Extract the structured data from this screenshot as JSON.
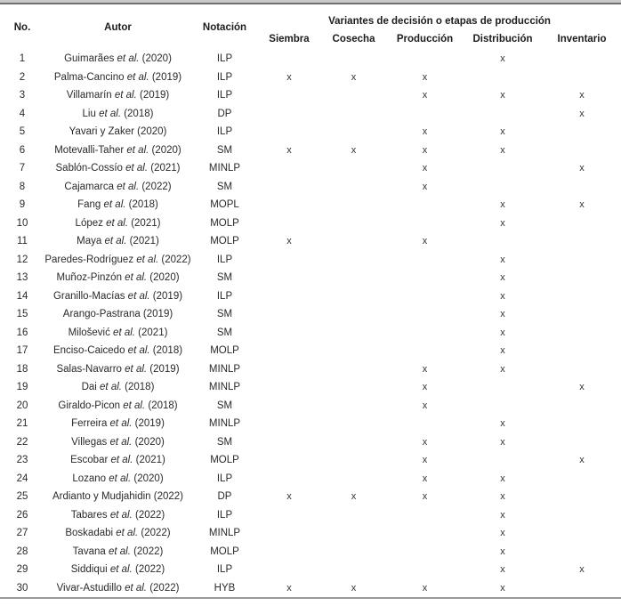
{
  "table": {
    "headers": {
      "no": "No.",
      "autor": "Autor",
      "notacion": "Notación",
      "group": "Variantes de decisión o etapas de producción",
      "variants": [
        "Siembra",
        "Cosecha",
        "Producción",
        "Distribución",
        "Inventario"
      ]
    },
    "variant_keys": [
      "siembra",
      "cosecha",
      "produccion",
      "distribucion",
      "inventario"
    ],
    "mark_symbol": "x",
    "rows": [
      {
        "no": "1",
        "author_pre": "Guimarães ",
        "author_etal": "et al.",
        "author_post": " (2020)",
        "notation": "ILP",
        "marks": [
          "",
          "",
          "",
          "x",
          ""
        ]
      },
      {
        "no": "2",
        "author_pre": "Palma-Cancino ",
        "author_etal": "et al.",
        "author_post": " (2019)",
        "notation": "ILP",
        "marks": [
          "x",
          "x",
          "x",
          "",
          ""
        ]
      },
      {
        "no": "3",
        "author_pre": "Villamarín ",
        "author_etal": "et al.",
        "author_post": " (2019)",
        "notation": "ILP",
        "marks": [
          "",
          "",
          "x",
          "x",
          "x"
        ]
      },
      {
        "no": "4",
        "author_pre": "Liu ",
        "author_etal": "et al.",
        "author_post": " (2018)",
        "notation": "DP",
        "marks": [
          "",
          "",
          "",
          "",
          "x"
        ]
      },
      {
        "no": "5",
        "author_pre": "Yavari y Zaker (2020)",
        "author_etal": "",
        "author_post": "",
        "notation": "ILP",
        "marks": [
          "",
          "",
          "x",
          "x",
          ""
        ]
      },
      {
        "no": "6",
        "author_pre": "Motevalli-Taher ",
        "author_etal": "et al.",
        "author_post": " (2020)",
        "notation": "SM",
        "marks": [
          "x",
          "x",
          "x",
          "x",
          ""
        ]
      },
      {
        "no": "7",
        "author_pre": "Sablón-Cossío ",
        "author_etal": "et al.",
        "author_post": " (2021)",
        "notation": "MINLP",
        "marks": [
          "",
          "",
          "x",
          "",
          "x"
        ]
      },
      {
        "no": "8",
        "author_pre": "Cajamarca ",
        "author_etal": "et al.",
        "author_post": " (2022)",
        "notation": "SM",
        "marks": [
          "",
          "",
          "x",
          "",
          ""
        ]
      },
      {
        "no": "9",
        "author_pre": "Fang ",
        "author_etal": "et al.",
        "author_post": " (2018)",
        "notation": "MOPL",
        "marks": [
          "",
          "",
          "",
          "x",
          "x"
        ]
      },
      {
        "no": "10",
        "author_pre": "López ",
        "author_etal": "et al.",
        "author_post": " (2021)",
        "notation": "MOLP",
        "marks": [
          "",
          "",
          "",
          "x",
          ""
        ]
      },
      {
        "no": "11",
        "author_pre": "Maya ",
        "author_etal": "et al.",
        "author_post": " (2021)",
        "notation": "MOLP",
        "marks": [
          "x",
          "",
          "x",
          "",
          ""
        ]
      },
      {
        "no": "12",
        "author_pre": "Paredes-Rodríguez ",
        "author_etal": "et al.",
        "author_post": " (2022)",
        "notation": "ILP",
        "marks": [
          "",
          "",
          "",
          "x",
          ""
        ]
      },
      {
        "no": "13",
        "author_pre": "Muñoz-Pinzón ",
        "author_etal": "et al.",
        "author_post": " (2020)",
        "notation": "SM",
        "marks": [
          "",
          "",
          "",
          "x",
          ""
        ]
      },
      {
        "no": "14",
        "author_pre": "Granillo-Macías ",
        "author_etal": "et al.",
        "author_post": " (2019)",
        "notation": "ILP",
        "marks": [
          "",
          "",
          "",
          "x",
          ""
        ]
      },
      {
        "no": "15",
        "author_pre": "Arango-Pastrana (2019)",
        "author_etal": "",
        "author_post": "",
        "notation": "SM",
        "marks": [
          "",
          "",
          "",
          "x",
          ""
        ]
      },
      {
        "no": "16",
        "author_pre": "Milošević ",
        "author_etal": "et al.",
        "author_post": " (2021)",
        "notation": "SM",
        "marks": [
          "",
          "",
          "",
          "x",
          ""
        ]
      },
      {
        "no": "17",
        "author_pre": "Enciso-Caicedo ",
        "author_etal": "et al.",
        "author_post": " (2018)",
        "notation": "MOLP",
        "marks": [
          "",
          "",
          "",
          "x",
          ""
        ]
      },
      {
        "no": "18",
        "author_pre": "Salas-Navarro ",
        "author_etal": "et al.",
        "author_post": " (2019)",
        "notation": "MINLP",
        "marks": [
          "",
          "",
          "x",
          "x",
          ""
        ]
      },
      {
        "no": "19",
        "author_pre": "Dai ",
        "author_etal": "et al.",
        "author_post": " (2018)",
        "notation": "MINLP",
        "marks": [
          "",
          "",
          "x",
          "",
          "x"
        ]
      },
      {
        "no": "20",
        "author_pre": "Giraldo-Picon ",
        "author_etal": "et al.",
        "author_post": " (2018)",
        "notation": "SM",
        "marks": [
          "",
          "",
          "x",
          "",
          ""
        ]
      },
      {
        "no": "21",
        "author_pre": "Ferreira ",
        "author_etal": "et al.",
        "author_post": " (2019)",
        "notation": "MINLP",
        "marks": [
          "",
          "",
          "",
          "x",
          ""
        ]
      },
      {
        "no": "22",
        "author_pre": "Villegas ",
        "author_etal": "et al.",
        "author_post": " (2020)",
        "notation": "SM",
        "marks": [
          "",
          "",
          "x",
          "x",
          ""
        ]
      },
      {
        "no": "23",
        "author_pre": "Escobar ",
        "author_etal": "et al.",
        "author_post": " (2021)",
        "notation": "MOLP",
        "marks": [
          "",
          "",
          "x",
          "",
          "x"
        ]
      },
      {
        "no": "24",
        "author_pre": "Lozano ",
        "author_etal": "et al.",
        "author_post": " (2020)",
        "notation": "ILP",
        "marks": [
          "",
          "",
          "x",
          "x",
          ""
        ]
      },
      {
        "no": "25",
        "author_pre": "Ardianto y Mudjahidin (2022)",
        "author_etal": "",
        "author_post": "",
        "notation": "DP",
        "marks": [
          "x",
          "x",
          "x",
          "x",
          ""
        ]
      },
      {
        "no": "26",
        "author_pre": "Tabares ",
        "author_etal": "et al.",
        "author_post": " (2022)",
        "notation": "ILP",
        "marks": [
          "",
          "",
          "",
          "x",
          ""
        ]
      },
      {
        "no": "27",
        "author_pre": "Boskadabi ",
        "author_etal": "et al.",
        "author_post": " (2022)",
        "notation": "MINLP",
        "marks": [
          "",
          "",
          "",
          "x",
          ""
        ]
      },
      {
        "no": "28",
        "author_pre": "Tavana ",
        "author_etal": "et al.",
        "author_post": " (2022)",
        "notation": "MOLP",
        "marks": [
          "",
          "",
          "",
          "x",
          ""
        ]
      },
      {
        "no": "29",
        "author_pre": "Siddiqui ",
        "author_etal": "et al.",
        "author_post": " (2022)",
        "notation": "ILP",
        "marks": [
          "",
          "",
          "",
          "x",
          "x"
        ]
      },
      {
        "no": "30",
        "author_pre": "Vivar-Astudillo ",
        "author_etal": "et al.",
        "author_post": " (2022)",
        "notation": "HYB",
        "marks": [
          "x",
          "x",
          "x",
          "x",
          ""
        ]
      }
    ]
  },
  "colors": {
    "text": "#222222",
    "border_top": "#6f6f6f",
    "border_bottom": "#9a9a9a"
  }
}
